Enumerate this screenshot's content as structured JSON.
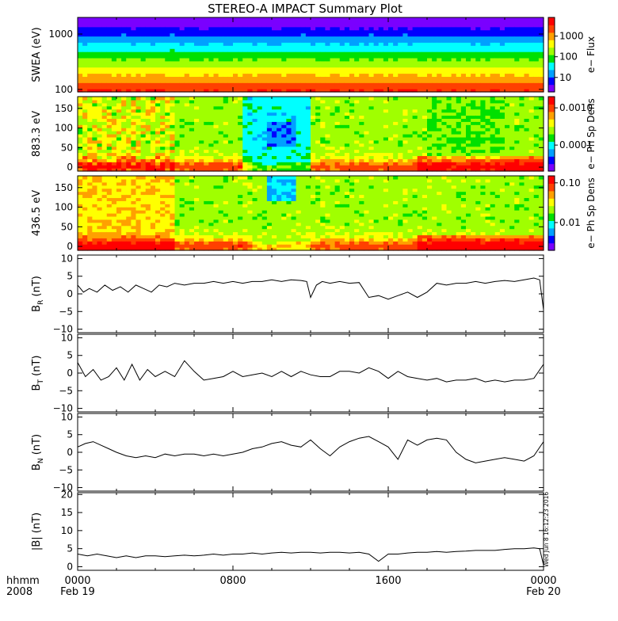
{
  "title": "STEREO-A IMPACT Summary Plot",
  "time_axis": {
    "row_label_line1": "hhmm",
    "row_label_line2": "2008",
    "ticks": [
      {
        "t": 0,
        "label": "0000",
        "date": "Feb 19"
      },
      {
        "t": 8,
        "label": "0800",
        "date": ""
      },
      {
        "t": 16,
        "label": "1600",
        "date": ""
      },
      {
        "t": 24,
        "label": "0000",
        "date": "Feb 20"
      }
    ]
  },
  "timestamp_text": "Wed Jun  8 16:12:23 2016",
  "colors": {
    "line": "#000000",
    "rainbow": [
      "#7a00ff",
      "#0000ff",
      "#00a0ff",
      "#00ffff",
      "#00e000",
      "#a0ff00",
      "#ffff00",
      "#ffa000",
      "#ff4000",
      "#ff0000"
    ]
  },
  "chart_data": [
    {
      "id": "swea",
      "type": "heatmap",
      "ylabel": "SWEA (eV)",
      "yscale": "log",
      "ylim": [
        90,
        2000
      ],
      "yticks": [
        {
          "v": 100,
          "label": "100"
        },
        {
          "v": 1000,
          "label": "1000"
        }
      ],
      "colorbar_label": "e− Flux",
      "colorbar_scale": "log",
      "colorbar_range": [
        2,
        8000
      ],
      "colorbar_ticks": [
        {
          "v": 10,
          "label": "10"
        },
        {
          "v": 100,
          "label": "100"
        },
        {
          "v": 1000,
          "label": "1000"
        }
      ]
    },
    {
      "id": "pad883",
      "type": "heatmap",
      "ylabel": "883.3 eV",
      "ylim": [
        -10,
        180
      ],
      "yticks": [
        {
          "v": 0,
          "label": "0"
        },
        {
          "v": 50,
          "label": "50"
        },
        {
          "v": 100,
          "label": "100"
        },
        {
          "v": 150,
          "label": "150"
        }
      ],
      "colorbar_label": "e− Ph Sp Dens",
      "colorbar_scale": "log",
      "colorbar_range": [
        2e-05,
        0.002
      ],
      "colorbar_ticks": [
        {
          "v": 0.0001,
          "label": "0.0001"
        },
        {
          "v": 0.001,
          "label": "0.0010"
        }
      ]
    },
    {
      "id": "pad436",
      "type": "heatmap",
      "ylabel": "436.5 eV",
      "ylim": [
        -10,
        180
      ],
      "yticks": [
        {
          "v": 0,
          "label": "0"
        },
        {
          "v": 50,
          "label": "50"
        },
        {
          "v": 100,
          "label": "100"
        },
        {
          "v": 150,
          "label": "150"
        }
      ],
      "colorbar_label": "e− Ph Sp Dens",
      "colorbar_scale": "log",
      "colorbar_range": [
        0.002,
        0.15
      ],
      "colorbar_ticks": [
        {
          "v": 0.01,
          "label": "0.01"
        },
        {
          "v": 0.1,
          "label": "0.10"
        }
      ]
    },
    {
      "id": "br",
      "type": "line",
      "ylabel": "B",
      "ylabel_sub": "R",
      "ylabel_unit": " (nT)",
      "ylim": [
        -11,
        11
      ],
      "yticks": [
        {
          "v": -10,
          "label": "−10"
        },
        {
          "v": -5,
          "label": "−5"
        },
        {
          "v": 0,
          "label": "0"
        },
        {
          "v": 5,
          "label": "5"
        },
        {
          "v": 10,
          "label": "10"
        }
      ],
      "x": [
        0,
        0.3,
        0.6,
        1.0,
        1.4,
        1.8,
        2.2,
        2.6,
        3.0,
        3.4,
        3.8,
        4.2,
        4.6,
        5.0,
        5.5,
        6.0,
        6.5,
        7.0,
        7.5,
        8.0,
        8.5,
        9.0,
        9.5,
        10.0,
        10.5,
        11.0,
        11.5,
        11.8,
        12.0,
        12.3,
        12.6,
        13.0,
        13.5,
        14.0,
        14.5,
        15.0,
        15.5,
        16.0,
        16.5,
        17.0,
        17.5,
        18.0,
        18.5,
        19.0,
        19.5,
        20.0,
        20.5,
        21.0,
        21.5,
        22.0,
        22.5,
        23.0,
        23.5,
        23.8,
        24.0
      ],
      "y": [
        2.5,
        0.5,
        1.5,
        0.5,
        2.5,
        1.0,
        2.0,
        0.5,
        2.5,
        1.5,
        0.5,
        2.5,
        2.0,
        3.0,
        2.5,
        3.0,
        3.0,
        3.5,
        3.0,
        3.5,
        3.0,
        3.5,
        3.5,
        4.0,
        3.5,
        4.0,
        3.8,
        3.5,
        -1.0,
        2.5,
        3.5,
        3.0,
        3.5,
        3.0,
        3.2,
        -1.0,
        -0.5,
        -1.5,
        -0.5,
        0.5,
        -1.0,
        0.5,
        3.0,
        2.5,
        3.0,
        3.0,
        3.5,
        3.0,
        3.5,
        3.8,
        3.5,
        4.0,
        4.5,
        4.0,
        -4.5
      ]
    },
    {
      "id": "bt",
      "type": "line",
      "ylabel": "B",
      "ylabel_sub": "T",
      "ylabel_unit": " (nT)",
      "ylim": [
        -11,
        11
      ],
      "yticks": [
        {
          "v": -10,
          "label": "−10"
        },
        {
          "v": -5,
          "label": "−5"
        },
        {
          "v": 0,
          "label": "0"
        },
        {
          "v": 5,
          "label": "5"
        },
        {
          "v": 10,
          "label": "10"
        }
      ],
      "x": [
        0,
        0.4,
        0.8,
        1.2,
        1.6,
        2.0,
        2.4,
        2.8,
        3.2,
        3.6,
        4.0,
        4.5,
        5.0,
        5.5,
        6.0,
        6.5,
        7.0,
        7.5,
        8.0,
        8.5,
        9.0,
        9.5,
        10.0,
        10.5,
        11.0,
        11.5,
        12.0,
        12.5,
        13.0,
        13.5,
        14.0,
        14.5,
        15.0,
        15.5,
        16.0,
        16.5,
        17.0,
        17.5,
        18.0,
        18.5,
        19.0,
        19.5,
        20.0,
        20.5,
        21.0,
        21.5,
        22.0,
        22.5,
        23.0,
        23.5,
        24.0
      ],
      "y": [
        3.0,
        -1.0,
        1.0,
        -2.0,
        -1.0,
        1.5,
        -2.0,
        2.5,
        -2.0,
        1.0,
        -1.0,
        0.5,
        -1.0,
        3.5,
        0.5,
        -2.0,
        -1.5,
        -1.0,
        0.5,
        -1.0,
        -0.5,
        0.0,
        -1.0,
        0.5,
        -1.0,
        0.5,
        -0.5,
        -1.0,
        -1.0,
        0.5,
        0.5,
        0.0,
        1.5,
        0.5,
        -1.5,
        0.5,
        -1.0,
        -1.5,
        -2.0,
        -1.5,
        -2.5,
        -2.0,
        -2.0,
        -1.5,
        -2.5,
        -2.0,
        -2.5,
        -2.0,
        -2.0,
        -1.5,
        2.5
      ]
    },
    {
      "id": "bn",
      "type": "line",
      "ylabel": "B",
      "ylabel_sub": "N",
      "ylabel_unit": " (nT)",
      "ylim": [
        -11,
        11
      ],
      "yticks": [
        {
          "v": -10,
          "label": "−10"
        },
        {
          "v": -5,
          "label": "−5"
        },
        {
          "v": 0,
          "label": "0"
        },
        {
          "v": 5,
          "label": "5"
        },
        {
          "v": 10,
          "label": "10"
        }
      ],
      "x": [
        0,
        0.4,
        0.8,
        1.2,
        1.6,
        2.0,
        2.5,
        3.0,
        3.5,
        4.0,
        4.5,
        5.0,
        5.5,
        6.0,
        6.5,
        7.0,
        7.5,
        8.0,
        8.5,
        9.0,
        9.5,
        10.0,
        10.5,
        11.0,
        11.5,
        12.0,
        12.5,
        13.0,
        13.5,
        14.0,
        14.5,
        15.0,
        15.5,
        16.0,
        16.5,
        17.0,
        17.5,
        18.0,
        18.5,
        19.0,
        19.5,
        20.0,
        20.5,
        21.0,
        21.5,
        22.0,
        22.5,
        23.0,
        23.5,
        24.0
      ],
      "y": [
        1.5,
        2.5,
        3.0,
        2.0,
        1.0,
        0.0,
        -1.0,
        -1.5,
        -1.0,
        -1.5,
        -0.5,
        -1.0,
        -0.5,
        -0.5,
        -1.0,
        -0.5,
        -1.0,
        -0.5,
        0.0,
        1.0,
        1.5,
        2.5,
        3.0,
        2.0,
        1.5,
        3.5,
        1.0,
        -1.0,
        1.5,
        3.0,
        4.0,
        4.5,
        3.0,
        1.5,
        -2.0,
        3.5,
        2.0,
        3.5,
        4.0,
        3.5,
        0.0,
        -2.0,
        -3.0,
        -2.5,
        -2.0,
        -1.5,
        -2.0,
        -2.5,
        -1.0,
        3.0
      ]
    },
    {
      "id": "bmag",
      "type": "line",
      "ylabel": "|B| (nT)",
      "ylim": [
        -1,
        20.5
      ],
      "yticks": [
        {
          "v": 0,
          "label": "0"
        },
        {
          "v": 5,
          "label": "5"
        },
        {
          "v": 10,
          "label": "10"
        },
        {
          "v": 15,
          "label": "15"
        },
        {
          "v": 20,
          "label": "20"
        }
      ],
      "x": [
        0,
        0.5,
        1.0,
        1.5,
        2.0,
        2.5,
        3.0,
        3.5,
        4.0,
        4.5,
        5.0,
        5.5,
        6.0,
        6.5,
        7.0,
        7.5,
        8.0,
        8.5,
        9.0,
        9.5,
        10.0,
        10.5,
        11.0,
        11.5,
        12.0,
        12.5,
        13.0,
        13.5,
        14.0,
        14.5,
        15.0,
        15.5,
        16.0,
        16.5,
        17.0,
        17.5,
        18.0,
        18.5,
        19.0,
        19.5,
        20.0,
        20.5,
        21.0,
        21.5,
        22.0,
        22.5,
        23.0,
        23.5,
        23.8,
        24.0
      ],
      "y": [
        3.5,
        3.0,
        3.5,
        3.0,
        2.5,
        3.0,
        2.5,
        3.0,
        3.0,
        2.8,
        3.0,
        3.2,
        3.0,
        3.2,
        3.5,
        3.2,
        3.5,
        3.5,
        3.8,
        3.5,
        3.8,
        4.0,
        3.8,
        4.0,
        4.0,
        3.8,
        4.0,
        4.0,
        3.8,
        4.0,
        3.5,
        1.5,
        3.5,
        3.5,
        3.8,
        4.0,
        4.0,
        4.2,
        4.0,
        4.2,
        4.3,
        4.5,
        4.5,
        4.5,
        4.8,
        5.0,
        5.0,
        5.2,
        5.0,
        0.5
      ]
    }
  ]
}
